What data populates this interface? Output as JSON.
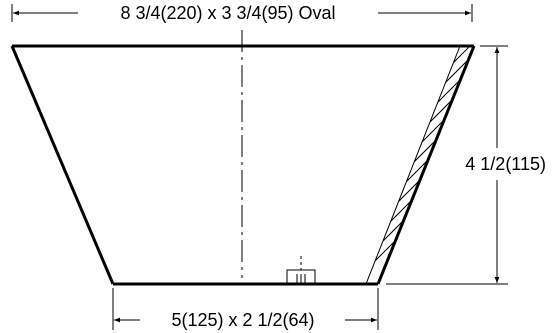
{
  "dimensions": {
    "top": "8 3/4(220) x 3 3/4(95) Oval",
    "bottom": "5(125) x 2 1/2(64)",
    "height": "4 1/2(115)"
  }
}
